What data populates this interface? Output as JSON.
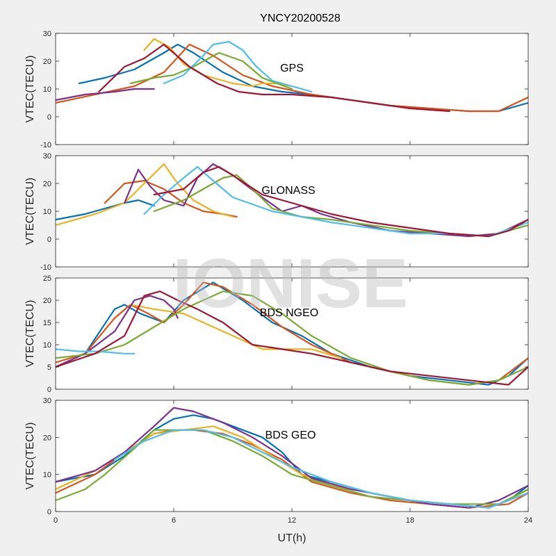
{
  "title": "YNCY20200528",
  "watermark": "IONISE",
  "x_axis_label": "UT(h)",
  "colors": [
    "#0072BD",
    "#D95319",
    "#EDB120",
    "#7E2F8E",
    "#77AC30",
    "#4DBEEE",
    "#A2142F"
  ],
  "chart_data": [
    {
      "type": "line",
      "label": "GPS",
      "ylabel": "VTEC(TECU)",
      "xlim": [
        0,
        24
      ],
      "ylim": [
        -10,
        30
      ],
      "xticks": [
        0,
        6,
        12,
        18,
        24
      ],
      "yticks": [
        -10,
        0,
        10,
        20,
        30
      ],
      "series": [
        {
          "x": [
            1.2,
            2.5,
            4,
            5.5,
            6.2,
            7,
            8.5,
            10,
            11.5,
            13,
            15,
            17,
            19,
            21,
            22.5,
            24
          ],
          "y": [
            12,
            14,
            17,
            23,
            26,
            23,
            16,
            11,
            9,
            8,
            6,
            4,
            3,
            2,
            2,
            5
          ]
        },
        {
          "x": [
            0,
            2,
            4,
            5.5,
            6.8,
            8,
            9.5,
            11,
            13,
            15,
            17,
            19,
            21,
            22.5,
            24
          ],
          "y": [
            5,
            8,
            11,
            16,
            26,
            22,
            15,
            11,
            8,
            6,
            4,
            3,
            2,
            2,
            7
          ]
        },
        {
          "x": [
            4.5,
            5,
            5.8,
            6.5,
            7.5,
            9,
            10,
            10.5,
            11.2,
            12
          ],
          "y": [
            24,
            28,
            25,
            19,
            15,
            12,
            11,
            12,
            12,
            11
          ]
        },
        {
          "x": [
            0,
            1.5,
            3,
            4,
            5
          ],
          "y": [
            6,
            8,
            9,
            10,
            10
          ]
        },
        {
          "x": [
            3.8,
            5,
            6,
            7,
            8.3,
            9.5,
            10.5,
            12
          ],
          "y": [
            12,
            14,
            15,
            18,
            23,
            20,
            14,
            10
          ]
        },
        {
          "x": [
            5.5,
            6.5,
            7.5,
            8,
            8.8,
            9.5,
            10.2,
            11,
            12,
            13
          ],
          "y": [
            12,
            15,
            22,
            26,
            27,
            24,
            18,
            13,
            11,
            9
          ]
        },
        {
          "x": [
            2.2,
            3.5,
            4.5,
            5.5,
            6.8,
            8.2,
            9.3,
            10.5,
            12,
            14,
            16,
            18,
            20
          ],
          "y": [
            9,
            18,
            21,
            26,
            18,
            12,
            9,
            8,
            8,
            7,
            5,
            3,
            2
          ]
        }
      ]
    },
    {
      "type": "line",
      "label": "GLONASS",
      "ylabel": "VTEC(TECU)",
      "xlim": [
        0,
        24
      ],
      "ylim": [
        -10,
        30
      ],
      "xticks": [
        0,
        6,
        12,
        18,
        24
      ],
      "yticks": [
        -10,
        0,
        10,
        20,
        30
      ],
      "series": [
        {
          "x": [
            0,
            1.5,
            2.5,
            3.5,
            4.2,
            5
          ],
          "y": [
            7,
            9,
            11,
            13,
            14,
            12
          ]
        },
        {
          "x": [
            2.5,
            3.5,
            4.5,
            5.5,
            6.5,
            7.5,
            8.5,
            9.2
          ],
          "y": [
            13,
            20,
            21,
            18,
            13,
            10,
            9,
            8
          ]
        },
        {
          "x": [
            0,
            2,
            3.5,
            4.5,
            5.5,
            6.2,
            7,
            8,
            9
          ],
          "y": [
            5,
            9,
            13,
            20,
            27,
            20,
            14,
            10,
            8
          ]
        },
        {
          "x": [
            3.5,
            4.2,
            4.8,
            5.5,
            6.5,
            7.2,
            8,
            9,
            10.5,
            11.5,
            12.5,
            13.5,
            15,
            17,
            19,
            21,
            22.5,
            24
          ],
          "y": [
            13,
            25,
            19,
            14,
            12,
            22,
            27,
            23,
            15,
            10,
            12,
            9,
            6,
            3,
            2,
            1,
            2,
            7
          ]
        },
        {
          "x": [
            5,
            6.5,
            7.5,
            8.5,
            9.2,
            10,
            11,
            12.5,
            14,
            16,
            18,
            20,
            22,
            24
          ],
          "y": [
            10,
            14,
            18,
            22,
            23,
            18,
            11,
            8,
            7,
            5,
            3,
            2,
            1,
            5
          ]
        },
        {
          "x": [
            4.5,
            5.5,
            6.5,
            7.2,
            8,
            9,
            10.2,
            11,
            12.5,
            14,
            16,
            18,
            20,
            22,
            24
          ],
          "y": [
            9,
            16,
            22,
            26,
            21,
            15,
            12,
            10,
            8,
            6,
            4,
            2,
            2,
            1,
            6
          ]
        },
        {
          "x": [
            5,
            6.5,
            7.5,
            8.3,
            9.2,
            10.5,
            12.5,
            14,
            16,
            18,
            20,
            22,
            23,
            24
          ],
          "y": [
            16,
            18,
            24,
            26,
            22,
            16,
            12,
            9,
            6,
            4,
            2,
            1,
            3,
            7
          ]
        }
      ]
    },
    {
      "type": "line",
      "label": "BDS NGEO",
      "ylabel": "VTEC(TECU)",
      "xlim": [
        0,
        24
      ],
      "ylim": [
        0,
        25
      ],
      "xticks": [
        0,
        6,
        12,
        18,
        24
      ],
      "yticks": [
        0,
        5,
        10,
        15,
        20,
        25
      ],
      "series": [
        {
          "x": [
            0,
            1.5,
            3,
            3.5,
            4.3,
            5.5,
            6.5,
            8,
            9.5,
            11,
            12.5,
            14,
            16,
            18,
            20,
            22,
            23,
            24
          ],
          "y": [
            5,
            8,
            18,
            19,
            17,
            15,
            20,
            24,
            20,
            15,
            12,
            8,
            5,
            3,
            2,
            1,
            3,
            7
          ]
        },
        {
          "x": [
            0,
            1.5,
            3,
            3.8,
            4.7,
            5.5,
            6.5,
            7.5,
            8.5,
            10,
            11.5,
            13,
            15,
            17,
            19,
            21,
            22.5,
            24
          ],
          "y": [
            6,
            8,
            16,
            19,
            17,
            15,
            19,
            24,
            23,
            19,
            14,
            10,
            6,
            4,
            2,
            1,
            2,
            7
          ]
        },
        {
          "x": [
            3.8,
            5,
            6.5,
            7.5,
            8.5,
            9.5,
            10.5,
            12,
            13,
            14.5
          ],
          "y": [
            19,
            18,
            17,
            15,
            13,
            11,
            9,
            9,
            9,
            7
          ]
        },
        {
          "x": [
            0,
            1.5,
            3,
            4,
            4.8,
            5.5,
            6,
            6.2
          ],
          "y": [
            5,
            8,
            13,
            20,
            21,
            20,
            18,
            16
          ]
        },
        {
          "x": [
            0,
            2,
            3.5,
            5,
            6.5,
            7.5,
            8.5,
            10,
            11.5,
            13,
            15,
            17,
            19,
            21,
            22.5,
            24
          ],
          "y": [
            7,
            8,
            10,
            14,
            18,
            20,
            22,
            21,
            17,
            12,
            7,
            4,
            2,
            1,
            2,
            5
          ]
        },
        {
          "x": [
            0,
            1.2,
            2.2,
            3.5,
            4
          ],
          "y": [
            9,
            8.5,
            8.5,
            8,
            8
          ]
        },
        {
          "x": [
            0,
            2,
            3.5,
            4.5,
            5.3,
            6.2,
            7.2,
            8.5,
            10,
            11.5,
            13,
            15,
            17,
            19,
            21,
            23,
            24
          ],
          "y": [
            5,
            8,
            12,
            21,
            22,
            20,
            18,
            15,
            10,
            9,
            8,
            6,
            4,
            3,
            2,
            1,
            5
          ]
        }
      ]
    },
    {
      "type": "line",
      "label": "BDS GEO",
      "ylabel": "VTEC(TECU)",
      "xlim": [
        0,
        24
      ],
      "ylim": [
        0,
        30
      ],
      "xticks": [
        0,
        6,
        12,
        18,
        24
      ],
      "yticks": [
        0,
        10,
        20,
        30
      ],
      "series": [
        {
          "x": [
            0,
            2,
            3.5,
            5,
            6,
            7,
            8,
            9,
            10.5,
            11.5,
            12.5,
            14,
            16,
            18,
            20,
            22,
            23,
            24
          ],
          "y": [
            8,
            10,
            15,
            22,
            25,
            26,
            25,
            23,
            20,
            16,
            10,
            8,
            5,
            3,
            2,
            1,
            3,
            7
          ]
        },
        {
          "x": [
            0,
            2,
            3.5,
            5,
            6,
            7,
            8.5,
            10,
            11.5,
            13,
            15,
            17,
            19,
            21,
            23,
            24
          ],
          "y": [
            5,
            10,
            16,
            21,
            22,
            22,
            21,
            18,
            14,
            8,
            5,
            3,
            2,
            1,
            2,
            5
          ]
        },
        {
          "x": [
            0,
            2,
            3.5,
            5,
            6.5,
            8,
            9.5,
            11,
            12.5,
            14,
            16,
            18,
            20,
            22,
            23,
            24
          ],
          "y": [
            6,
            11,
            16,
            21,
            22,
            23,
            20,
            15,
            10,
            7,
            5,
            3,
            2,
            1,
            3,
            6
          ]
        },
        {
          "x": [
            0,
            2,
            3.5,
            5,
            6,
            7,
            8.5,
            10,
            11.5,
            13,
            15,
            17,
            19,
            21,
            22.5,
            24
          ],
          "y": [
            8,
            11,
            16,
            23,
            28,
            27,
            24,
            20,
            15,
            9,
            6,
            4,
            2,
            1,
            3,
            7
          ]
        },
        {
          "x": [
            0,
            1.5,
            2.5,
            4,
            5,
            6,
            7.5,
            9,
            10.5,
            12,
            14,
            16,
            18,
            20,
            22.5,
            24
          ],
          "y": [
            3,
            6,
            10,
            17,
            22,
            22,
            22,
            19,
            15,
            10,
            7,
            4,
            3,
            2,
            2,
            6
          ]
        },
        {
          "x": [
            3,
            4.5,
            6,
            7.5,
            9,
            10.5,
            12,
            14,
            16,
            18,
            20,
            22,
            24
          ],
          "y": [
            14,
            19,
            22,
            22,
            20,
            16,
            12,
            8,
            5,
            3,
            2,
            1,
            5
          ]
        }
      ]
    }
  ]
}
